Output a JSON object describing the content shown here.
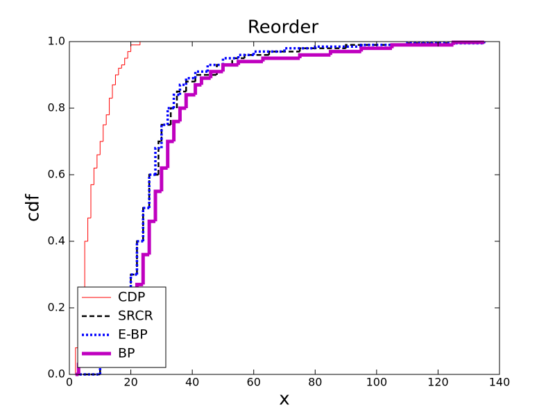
{
  "chart_data": {
    "type": "line",
    "step": true,
    "title": "Reorder",
    "xlabel": "x",
    "ylabel": "cdf",
    "xlim": [
      0,
      140
    ],
    "ylim": [
      0,
      1
    ],
    "xticks": [
      0,
      20,
      40,
      60,
      80,
      100,
      120,
      140
    ],
    "yticks": [
      {
        "value": 0,
        "label": "0.0"
      },
      0.2,
      0.4,
      0.6,
      0.8,
      {
        "value": 1,
        "label": "1.0"
      }
    ],
    "legend": "lower left",
    "series": [
      {
        "name": "CDP",
        "color": "#ff0000",
        "linestyle": "solid",
        "x": [
          1,
          2,
          4,
          5,
          6,
          7,
          8,
          9,
          10,
          11,
          12,
          13,
          14,
          15,
          16,
          17,
          18,
          19,
          20,
          23
        ],
        "values": [
          0,
          0.08,
          0.22,
          0.4,
          0.47,
          0.57,
          0.62,
          0.66,
          0.7,
          0.75,
          0.78,
          0.83,
          0.87,
          0.9,
          0.92,
          0.93,
          0.95,
          0.97,
          0.99,
          1.0
        ]
      },
      {
        "name": "SRCR",
        "color": "#000000",
        "linestyle": "dashed",
        "x": [
          2,
          10,
          16,
          18,
          20,
          22,
          24,
          26,
          29,
          30,
          33,
          35,
          38,
          41,
          48,
          53,
          57,
          65,
          75,
          90,
          110,
          135
        ],
        "values": [
          0,
          0.1,
          0.2,
          0.25,
          0.3,
          0.4,
          0.5,
          0.6,
          0.7,
          0.75,
          0.8,
          0.85,
          0.88,
          0.9,
          0.93,
          0.95,
          0.96,
          0.97,
          0.98,
          0.99,
          0.995,
          1.0
        ]
      },
      {
        "name": "E-BP",
        "color": "#0000ff",
        "linestyle": "dotted",
        "x": [
          2,
          10,
          16,
          18,
          20,
          22,
          24,
          26,
          28,
          30,
          32,
          34,
          36,
          38,
          41,
          45,
          50,
          55,
          60,
          70,
          80,
          95,
          110,
          135
        ],
        "values": [
          0,
          0.1,
          0.2,
          0.25,
          0.3,
          0.4,
          0.5,
          0.6,
          0.68,
          0.75,
          0.8,
          0.84,
          0.87,
          0.89,
          0.91,
          0.93,
          0.95,
          0.96,
          0.97,
          0.98,
          0.985,
          0.99,
          0.995,
          1.0
        ]
      },
      {
        "name": "BP",
        "color": "#bf00bf",
        "linestyle": "solid-thick",
        "x": [
          2,
          3,
          10,
          18,
          22,
          24,
          26,
          28,
          30,
          32,
          34,
          36,
          38,
          41,
          43,
          46,
          50,
          55,
          63,
          75,
          85,
          95,
          105,
          125,
          135
        ],
        "values": [
          0,
          0.03,
          0.1,
          0.2,
          0.27,
          0.36,
          0.46,
          0.55,
          0.62,
          0.7,
          0.76,
          0.8,
          0.84,
          0.87,
          0.89,
          0.91,
          0.93,
          0.94,
          0.95,
          0.96,
          0.97,
          0.98,
          0.99,
          0.998,
          1.0
        ]
      }
    ]
  }
}
